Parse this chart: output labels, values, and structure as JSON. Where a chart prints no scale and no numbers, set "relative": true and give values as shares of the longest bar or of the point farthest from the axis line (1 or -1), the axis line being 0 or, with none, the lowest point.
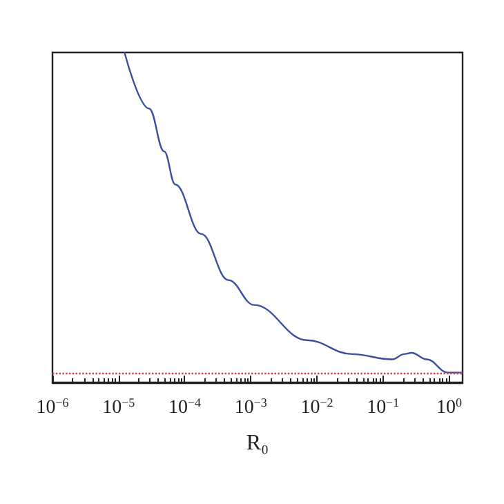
{
  "chart_data": {
    "type": "line",
    "xlabel": "R₀",
    "relative": true,
    "log": "x",
    "xlim": [
      1e-06,
      1.6
    ],
    "xticks": [
      {
        "value": 1e-06,
        "label": "10$^{−6}$"
      },
      {
        "value": 1e-05,
        "label": "10$^{−5}$"
      },
      {
        "value": 0.0001,
        "label": "10$^{−4}$"
      },
      {
        "value": 0.001,
        "label": "10$^{−3}$"
      },
      {
        "value": 0.01,
        "label": "10$^{−2}$"
      },
      {
        "value": 0.1,
        "label": "10$^{−1}$"
      },
      {
        "value": 1,
        "label": "10$^{0}$"
      }
    ],
    "series": [
      {
        "color": "#3a4fa0",
        "x": [
          1.23e-05,
          2.9e-05,
          4.9e-05,
          7.2e-05,
          0.000178,
          0.00046,
          0.00112,
          0.0071,
          0.034,
          0.138,
          0.21,
          0.27,
          0.46,
          0.96,
          1.6
        ],
        "values": [
          1,
          0.83,
          0.7,
          0.6,
          0.45,
          0.31,
          0.235,
          0.128,
          0.086,
          0.07,
          0.086,
          0.09,
          0.07,
          0.03,
          0.03
        ]
      }
    ],
    "ref_lines": [
      {
        "axis": "y",
        "value": 0.025,
        "color": "#d04040",
        "line_style": "dotted"
      }
    ],
    "grid": false,
    "marker": "none",
    "line_style": "solid"
  }
}
